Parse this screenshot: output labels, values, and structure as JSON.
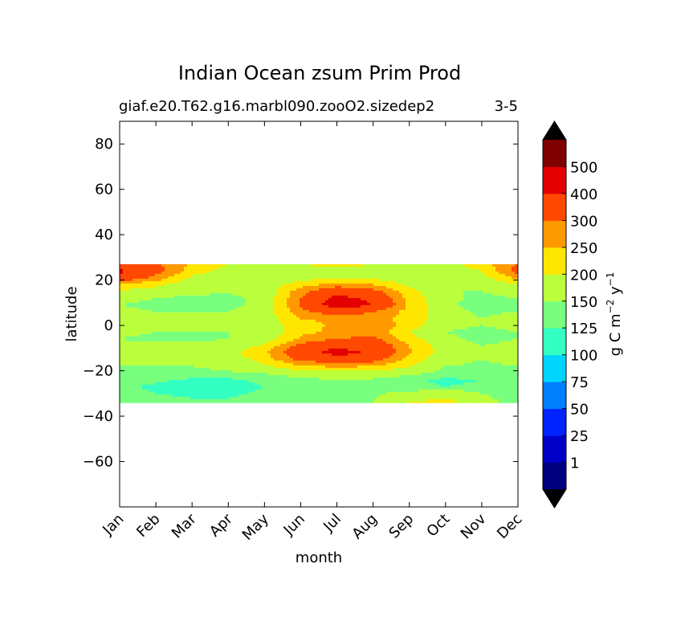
{
  "chart_data": {
    "type": "heatmap",
    "title": "Indian Ocean zsum Prim Prod",
    "subtitle_left": "giaf.e20.T62.g16.marbl090.zooO2.sizedep2",
    "subtitle_right": "3-5",
    "xlabel": "month",
    "ylabel": "latitude",
    "x_ticks": [
      "Jan",
      "Feb",
      "Mar",
      "Apr",
      "May",
      "Jun",
      "Jul",
      "Aug",
      "Sep",
      "Oct",
      "Nov",
      "Dec"
    ],
    "y_ticks": [
      80,
      60,
      40,
      20,
      0,
      -20,
      -40,
      -60
    ],
    "y_tick_labels": [
      "80",
      "60",
      "40",
      "20",
      "0",
      "−20",
      "−40",
      "−60"
    ],
    "ylim": [
      -80,
      90
    ],
    "data_lat_range": [
      -34,
      27
    ],
    "colorbar": {
      "label_main": "g C m",
      "label_exp1": "−2",
      "label_mid": " y",
      "label_exp2": "−1",
      "levels": [
        1,
        25,
        50,
        75,
        100,
        125,
        150,
        200,
        250,
        300,
        400,
        500
      ],
      "level_labels": [
        "1",
        "25",
        "50",
        "75",
        "100",
        "125",
        "150",
        "200",
        "250",
        "300",
        "400",
        "500"
      ],
      "colors": [
        "#00007f",
        "#0000c8",
        "#0022ff",
        "#0080ff",
        "#00d4ff",
        "#33ffc2",
        "#78ff7e",
        "#bbff3c",
        "#ffe600",
        "#ff9900",
        "#ff4800",
        "#e30000",
        "#7f0000"
      ],
      "extend_colors": [
        "#000000",
        "#000000"
      ]
    },
    "field": {
      "months": [
        0,
        1,
        2,
        3,
        4,
        5,
        6,
        7,
        8,
        9,
        10,
        11
      ],
      "latitudes": [
        27,
        24,
        21,
        18,
        15,
        12,
        9,
        6,
        3,
        0,
        -3,
        -6,
        -9,
        -12,
        -15,
        -18,
        -21,
        -24,
        -27,
        -30,
        -34
      ],
      "values": [
        [
          320,
          310,
          240,
          200,
          190,
          200,
          210,
          200,
          180,
          180,
          230,
          300
        ],
        [
          420,
          330,
          220,
          180,
          170,
          180,
          190,
          190,
          170,
          170,
          200,
          330
        ],
        [
          360,
          280,
          190,
          170,
          160,
          170,
          200,
          190,
          160,
          160,
          180,
          260
        ],
        [
          240,
          210,
          170,
          160,
          160,
          230,
          270,
          250,
          190,
          150,
          160,
          200
        ],
        [
          190,
          180,
          160,
          155,
          160,
          280,
          360,
          320,
          220,
          150,
          150,
          170
        ],
        [
          160,
          150,
          140,
          140,
          160,
          300,
          430,
          380,
          230,
          160,
          140,
          150
        ],
        [
          150,
          140,
          140,
          140,
          160,
          310,
          460,
          400,
          240,
          160,
          130,
          140
        ],
        [
          160,
          150,
          150,
          150,
          170,
          280,
          340,
          300,
          230,
          170,
          140,
          150
        ],
        [
          200,
          180,
          170,
          160,
          170,
          250,
          260,
          270,
          230,
          170,
          150,
          170
        ],
        [
          180,
          170,
          160,
          160,
          170,
          230,
          260,
          300,
          220,
          160,
          150,
          160
        ],
        [
          160,
          150,
          150,
          150,
          160,
          240,
          260,
          280,
          200,
          150,
          140,
          150
        ],
        [
          150,
          140,
          140,
          150,
          170,
          260,
          300,
          320,
          220,
          160,
          140,
          150
        ],
        [
          160,
          160,
          160,
          170,
          210,
          320,
          380,
          360,
          250,
          170,
          150,
          160
        ],
        [
          170,
          170,
          170,
          180,
          240,
          360,
          440,
          380,
          260,
          170,
          160,
          170
        ],
        [
          160,
          160,
          160,
          170,
          220,
          320,
          340,
          330,
          230,
          160,
          150,
          160
        ],
        [
          150,
          150,
          150,
          160,
          190,
          240,
          260,
          250,
          200,
          150,
          145,
          150
        ],
        [
          140,
          140,
          140,
          145,
          150,
          170,
          180,
          175,
          160,
          140,
          140,
          140
        ],
        [
          135,
          130,
          120,
          120,
          130,
          140,
          150,
          145,
          130,
          120,
          125,
          135
        ],
        [
          130,
          120,
          115,
          115,
          125,
          135,
          140,
          140,
          130,
          125,
          130,
          135
        ],
        [
          135,
          125,
          120,
          120,
          130,
          140,
          145,
          145,
          160,
          180,
          150,
          140
        ],
        [
          140,
          135,
          130,
          130,
          135,
          140,
          145,
          150,
          200,
          220,
          160,
          140
        ]
      ]
    }
  }
}
